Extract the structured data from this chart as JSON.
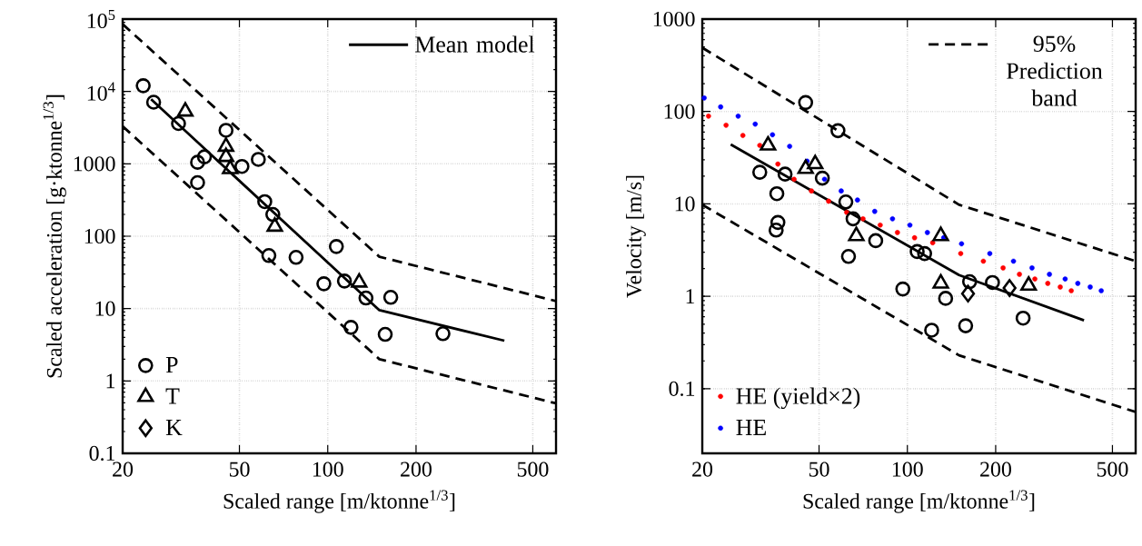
{
  "chart_data": [
    {
      "type": "scatter",
      "xlabel": "Scaled range [m/ktonne$^{1/3}$]",
      "ylabel": "Scaled acceleration [g·ktonne$^{1/3}$]",
      "log": "xy",
      "grid": true,
      "legend": [
        "top right",
        "bottom left"
      ],
      "xlim": [
        20,
        600
      ],
      "ylim": [
        0.1,
        100000
      ],
      "xticks": [
        20,
        50,
        100,
        200,
        500
      ],
      "yticks": [
        0.1,
        1,
        10,
        100,
        1000,
        {
          "value": 10000,
          "label": "10$^{4}$"
        },
        {
          "value": 100000,
          "label": "10$^{5}$"
        }
      ],
      "series": [
        {
          "type": "line",
          "color": "#000000",
          "line_style": "dashed",
          "marker": "none",
          "x": [
            20,
            150,
            600
          ],
          "values": [
            85000,
            52,
            12.7
          ]
        },
        {
          "type": "line",
          "color": "#000000",
          "line_style": "dashed",
          "marker": "none",
          "x": [
            20,
            150,
            600
          ],
          "values": [
            3300,
            2,
            0.49
          ]
        },
        {
          "type": "line",
          "name": "Mean model",
          "color": "#000000",
          "line_style": "solid",
          "marker": "none",
          "x": [
            25,
            150,
            400
          ],
          "values": [
            7800,
            9.5,
            3.6
          ]
        },
        {
          "name": "P",
          "color": "#000000",
          "marker": "circle",
          "x": [
            23.5,
            25.5,
            31,
            36,
            38,
            36,
            45,
            51,
            58,
            61,
            65,
            63,
            78,
            107,
            97,
            114,
            135,
            164,
            120,
            157,
            247
          ],
          "values": [
            12000,
            7100,
            3600,
            1050,
            1250,
            550,
            2900,
            920,
            1150,
            300,
            200,
            54,
            51,
            72,
            22,
            24,
            14,
            14.3,
            5.5,
            4.4,
            4.5
          ]
        },
        {
          "name": "T",
          "color": "#000000",
          "marker": "triangle",
          "x": [
            32.7,
            45,
            45,
            46.5,
            66,
            128
          ],
          "values": [
            5300,
            1730,
            1250,
            850,
            136,
            23
          ]
        },
        {
          "name": "K",
          "color": "#000000",
          "marker": "diamond"
        }
      ]
    },
    {
      "type": "scatter",
      "xlabel": "Scaled range [m/ktonne$^{1/3}$]",
      "ylabel": "Velocity [m/s]",
      "log": "xy",
      "grid": true,
      "legend": [
        "top right",
        "bottom left"
      ],
      "xlim": [
        20,
        600
      ],
      "ylim": [
        0.02,
        1000
      ],
      "xticks": [
        20,
        50,
        100,
        200,
        500
      ],
      "yticks": [
        0.1,
        1,
        10,
        100,
        1000
      ],
      "series": [
        {
          "type": "line",
          "name": "95% Prediction band",
          "color": "#000000",
          "line_style": "dashed",
          "marker": "none",
          "x": [
            20,
            150,
            600
          ],
          "values": [
            490,
            9.8,
            2.4
          ]
        },
        {
          "type": "line",
          "color": "#000000",
          "line_style": "dashed",
          "marker": "none",
          "x": [
            20,
            150,
            600
          ],
          "values": [
            9.8,
            0.23,
            0.056
          ]
        },
        {
          "type": "line",
          "color": "#000000",
          "line_style": "solid",
          "marker": "none",
          "x": [
            25,
            150,
            400
          ],
          "values": [
            44,
            1.7,
            0.55
          ]
        },
        {
          "name": "HE (yield×2)",
          "color": "#ff0000",
          "marker": "circle",
          "x": [
            21,
            24.1,
            27.5,
            31.4,
            36.2,
            41.1,
            47.1,
            53.9,
            62.1,
            70.6,
            80.8,
            92.5,
            105.8,
            122,
            152,
            181.6,
            212,
            241,
            272,
            301,
            332,
            362
          ],
          "values": [
            89,
            71,
            55,
            43,
            27,
            18.5,
            13.8,
            10.7,
            8.1,
            6.9,
            5.9,
            4.9,
            4.3,
            3.8,
            2.9,
            2.4,
            2.03,
            1.73,
            1.54,
            1.38,
            1.26,
            1.15
          ]
        },
        {
          "name": "HE",
          "color": "#0000ff",
          "marker": "circle",
          "x": [
            20.3,
            23.1,
            26.5,
            30.3,
            34.7,
            39.7,
            45.5,
            52.2,
            59.5,
            67.6,
            77.4,
            89,
            102,
            117,
            133,
            153,
            191,
            230,
            266,
            305,
            345,
            381,
            420,
            458
          ],
          "values": [
            140,
            112,
            89,
            73,
            56,
            42,
            29,
            18.5,
            13.8,
            11,
            8.3,
            6.9,
            5.9,
            4.9,
            4.3,
            3.7,
            2.9,
            2.4,
            2.03,
            1.73,
            1.54,
            1.38,
            1.26,
            1.15
          ]
        },
        {
          "color": "#000000",
          "marker": "circle",
          "x": [
            45,
            58,
            31.4,
            38.3,
            35.9,
            36.2,
            35.7,
            51.3,
            61.7,
            65.3,
            78,
            63,
            108,
            114.5,
            96.5,
            135,
            163,
            195,
            121,
            158,
            248
          ],
          "values": [
            125,
            62,
            22,
            21,
            12.9,
            6.3,
            5.2,
            19,
            10.5,
            6.9,
            4,
            2.7,
            3.05,
            2.9,
            1.2,
            0.95,
            1.44,
            1.41,
            0.43,
            0.48,
            0.58
          ]
        },
        {
          "color": "#000000",
          "marker": "triangle",
          "x": [
            33.5,
            45,
            48.5,
            67,
            130,
            130,
            259
          ],
          "values": [
            43,
            24,
            27,
            4.5,
            4.5,
            1.38,
            1.31
          ]
        },
        {
          "color": "#000000",
          "marker": "diamond",
          "x": [
            161,
            223
          ],
          "values": [
            1.07,
            1.23
          ]
        }
      ]
    }
  ]
}
